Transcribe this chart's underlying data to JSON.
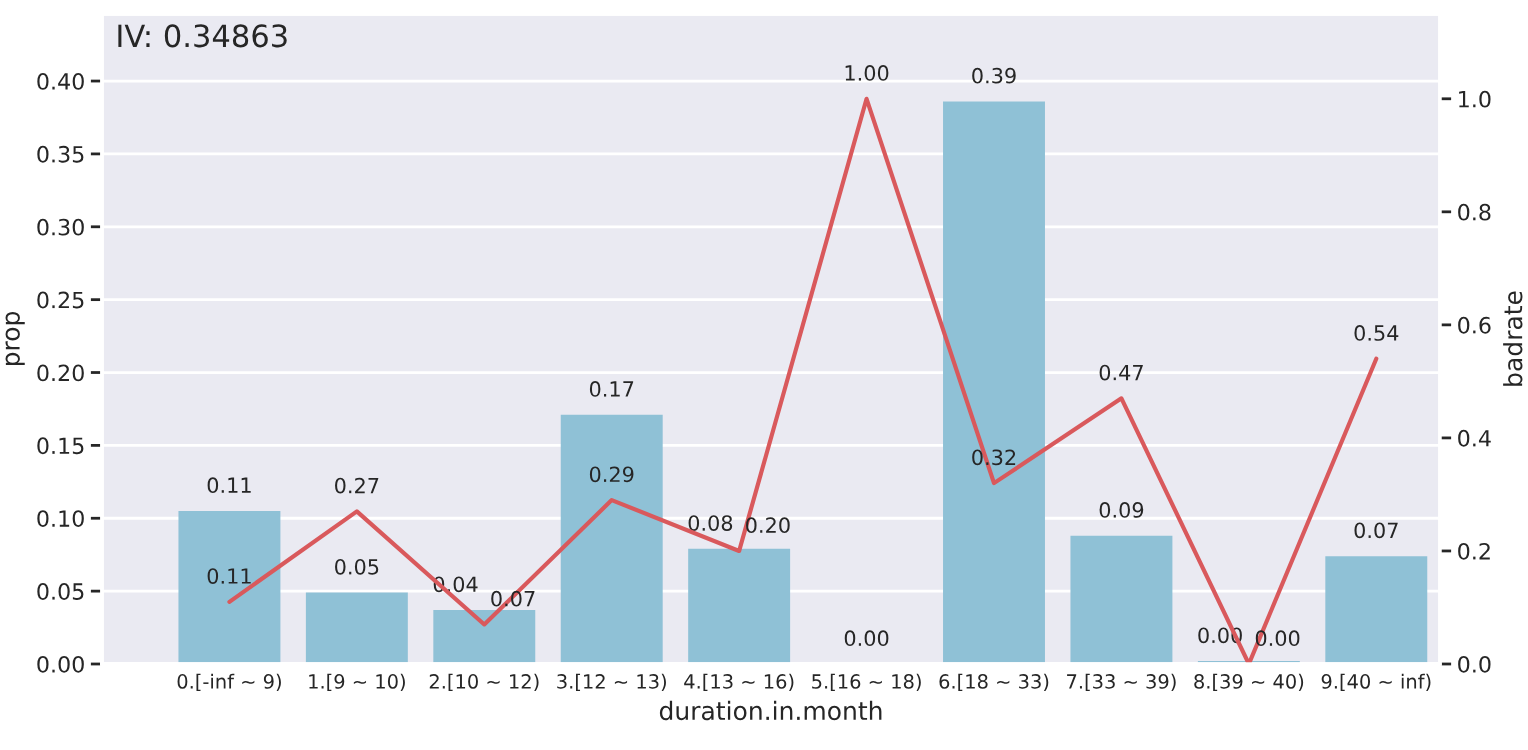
{
  "chart_data": {
    "type": "bar",
    "title": "IV: 0.34863",
    "xlabel": "duration.in.month",
    "ylabel": "prop",
    "y2label": "badrate",
    "categories": [
      "0.[-inf ~ 9)",
      "1.[9 ~ 10)",
      "2.[10 ~ 12)",
      "3.[12 ~ 13)",
      "4.[13 ~ 16)",
      "5.[16 ~ 18)",
      "6.[18 ~ 33)",
      "7.[33 ~ 39)",
      "8.[39 ~ 40)",
      "9.[40 ~ inf)"
    ],
    "series": [
      {
        "color": "#8fc1d6",
        "values": [
          0.105,
          0.049,
          0.037,
          0.171,
          0.079,
          0.0,
          0.386,
          0.088,
          0.002,
          0.074
        ],
        "value_labels": [
          "0.11",
          "0.05",
          "0.04",
          "0.17",
          "0.08",
          "0.00",
          "0.39",
          "0.09",
          "0.00",
          "0.07"
        ]
      },
      {
        "type": "line",
        "axis": "y2",
        "color": "#d9595c",
        "values": [
          0.11,
          0.27,
          0.07,
          0.29,
          0.2,
          1.0,
          0.32,
          0.47,
          0.0,
          0.54
        ],
        "value_labels": [
          "0.11",
          "0.27",
          "0.07",
          "0.29",
          "0.20",
          "1.00",
          "0.32",
          "0.47",
          "0.00",
          "0.54"
        ]
      }
    ],
    "ylim": [
      0,
      0.446
    ],
    "yticks": [
      {
        "value": 0,
        "label": "0.00"
      },
      {
        "value": 0.05,
        "label": "0.05"
      },
      {
        "value": 0.1,
        "label": "0.10"
      },
      {
        "value": 0.15,
        "label": "0.15"
      },
      {
        "value": 0.2,
        "label": "0.20"
      },
      {
        "value": 0.25,
        "label": "0.25"
      },
      {
        "value": 0.3,
        "label": "0.30"
      },
      {
        "value": 0.35,
        "label": "0.35"
      },
      {
        "value": 0.4,
        "label": "0.40"
      }
    ],
    "y2lim": [
      0,
      1.15
    ],
    "y2ticks": [
      {
        "value": 0,
        "label": "0.0"
      },
      {
        "value": 0.2,
        "label": "0.2"
      },
      {
        "value": 0.4,
        "label": "0.4"
      },
      {
        "value": 0.6,
        "label": "0.6"
      },
      {
        "value": 0.8,
        "label": "0.8"
      },
      {
        "value": 1.0,
        "label": "1.0"
      }
    ],
    "grid": "y",
    "legend": false,
    "marker": "none",
    "line_style": "solid"
  }
}
